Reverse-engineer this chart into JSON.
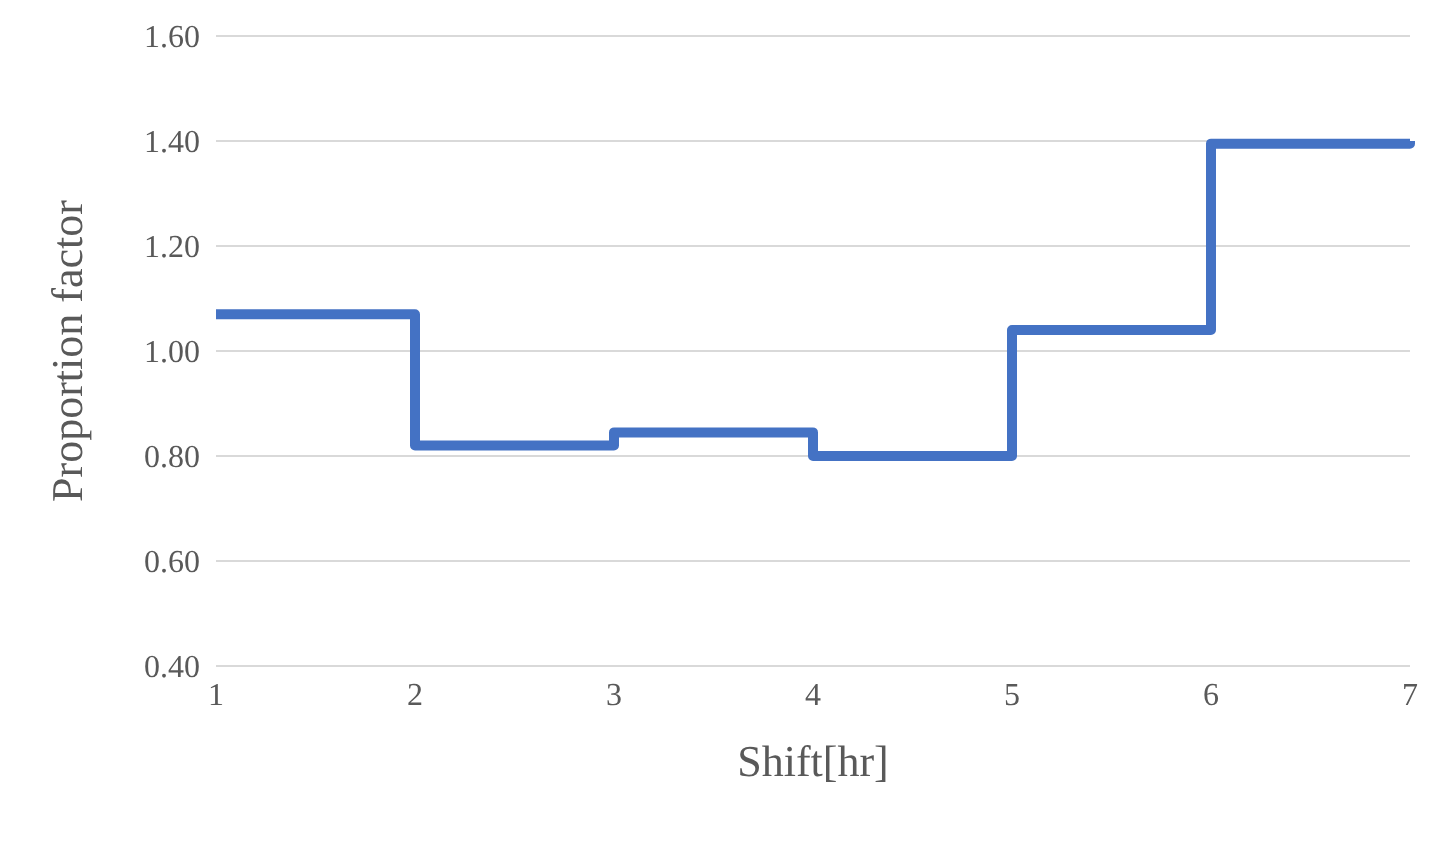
{
  "chart_data": {
    "type": "step",
    "xlabel": "Shift[hr]",
    "ylabel": "Proportion factor",
    "categories": [
      "1",
      "2",
      "3",
      "4",
      "5",
      "6",
      "7"
    ],
    "values": [
      1.07,
      0.82,
      0.845,
      0.8,
      1.04,
      1.395,
      1.4
    ],
    "color": "#4472c4",
    "ylim": [
      0.4,
      1.6
    ],
    "yticks": [
      {
        "value": 0.4,
        "label": "0.40"
      },
      {
        "value": 0.6,
        "label": "0.60"
      },
      {
        "value": 0.8,
        "label": "0.80"
      },
      {
        "value": 1.0,
        "label": "1.00"
      },
      {
        "value": 1.2,
        "label": "1.20"
      },
      {
        "value": 1.4,
        "label": "1.40"
      },
      {
        "value": 1.6,
        "label": "1.60"
      }
    ],
    "grid": "y",
    "legend": false
  }
}
